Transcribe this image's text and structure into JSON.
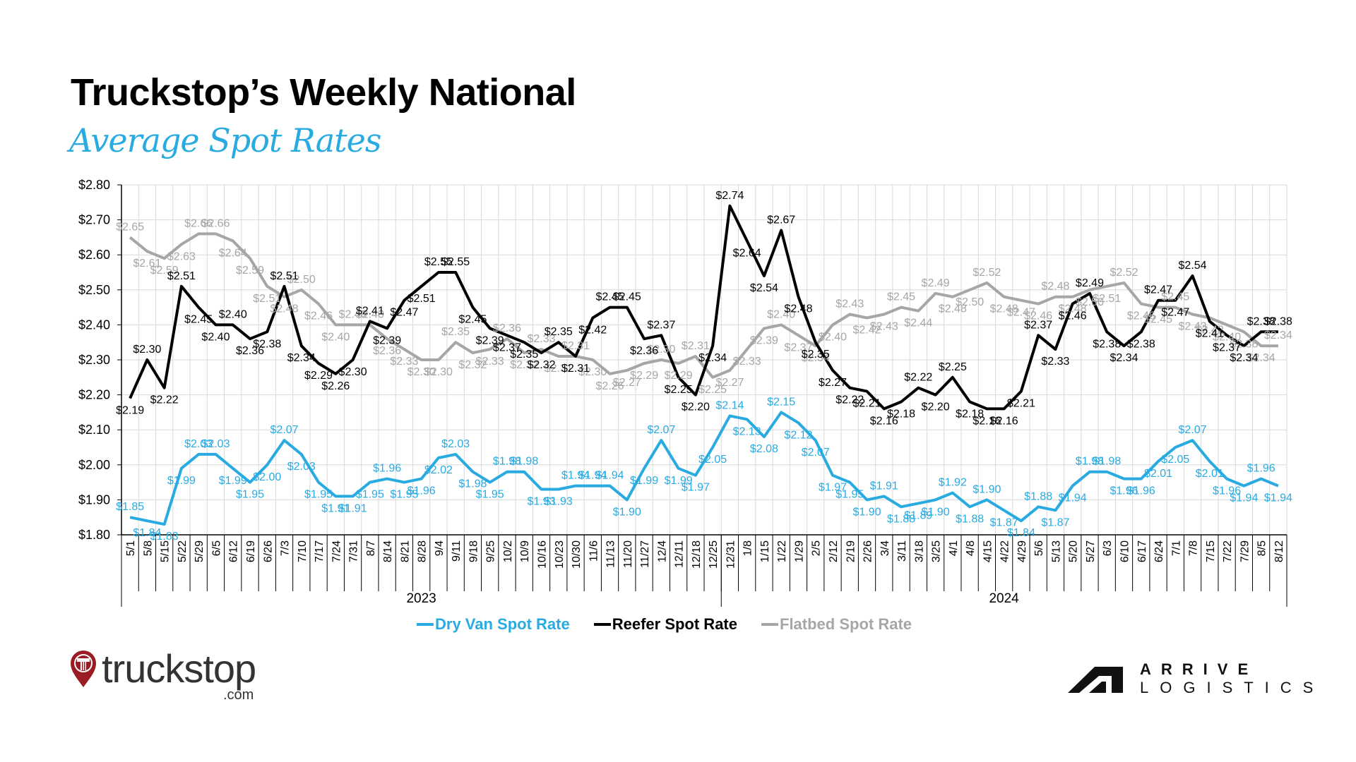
{
  "header": {
    "title": "Truckstop’s Weekly National",
    "subtitle": "Average Spot Rates"
  },
  "colors": {
    "dry_van": "#29abe2",
    "reefer": "#000000",
    "flatbed": "#a6a6a6",
    "grid": "#d9d9d9"
  },
  "chart_data": {
    "type": "line",
    "title": "Truckstop’s Weekly National Average Spot Rates",
    "xlabel": "",
    "ylabel": "",
    "ylim": [
      1.8,
      2.8
    ],
    "y_ticks": [
      "$1.80",
      "$1.90",
      "$2.00",
      "$2.10",
      "$2.20",
      "$2.30",
      "$2.40",
      "$2.50",
      "$2.60",
      "$2.70",
      "$2.80"
    ],
    "grid": true,
    "legend_position": "bottom",
    "year_groups": [
      {
        "label": "2023",
        "count": 35
      },
      {
        "label": "2024",
        "count": 33
      }
    ],
    "categories": [
      "5/1",
      "5/8",
      "5/15",
      "5/22",
      "5/29",
      "6/5",
      "6/12",
      "6/19",
      "6/26",
      "7/3",
      "7/10",
      "7/17",
      "7/24",
      "7/31",
      "8/7",
      "8/14",
      "8/21",
      "8/28",
      "9/4",
      "9/11",
      "9/18",
      "9/25",
      "10/2",
      "10/9",
      "10/16",
      "10/23",
      "10/30",
      "11/6",
      "11/13",
      "11/20",
      "11/27",
      "12/4",
      "12/11",
      "12/18",
      "12/25",
      "12/31",
      "1/8",
      "1/15",
      "1/22",
      "1/29",
      "2/5",
      "2/12",
      "2/19",
      "2/26",
      "3/4",
      "3/11",
      "3/18",
      "3/25",
      "4/1",
      "4/8",
      "4/15",
      "4/22",
      "4/29",
      "5/6",
      "5/13",
      "5/20",
      "5/27",
      "6/3",
      "6/10",
      "6/17",
      "6/24",
      "7/1",
      "7/8",
      "7/15",
      "7/22",
      "7/29",
      "8/5",
      "8/12"
    ],
    "series": [
      {
        "name": "Dry Van Spot Rate",
        "key": "dry_van",
        "values": [
          1.85,
          1.84,
          1.83,
          1.99,
          2.03,
          2.03,
          1.99,
          1.95,
          2.0,
          2.07,
          2.03,
          1.95,
          1.91,
          1.91,
          1.95,
          1.96,
          1.95,
          1.96,
          2.02,
          2.03,
          1.98,
          1.95,
          1.98,
          1.98,
          1.93,
          1.93,
          1.94,
          1.94,
          1.94,
          1.9,
          1.99,
          2.07,
          1.99,
          1.97,
          2.05,
          2.14,
          2.13,
          2.08,
          2.15,
          2.12,
          2.07,
          1.97,
          1.95,
          1.9,
          1.91,
          1.88,
          1.89,
          1.9,
          1.92,
          1.88,
          1.9,
          1.87,
          1.84,
          1.88,
          1.87,
          1.94,
          1.98,
          1.98,
          1.96,
          1.96,
          2.01,
          2.05,
          2.07,
          2.01,
          1.96,
          1.94,
          1.96,
          1.94
        ]
      },
      {
        "name": "Reefer Spot Rate",
        "key": "reefer",
        "values": [
          2.19,
          2.3,
          2.22,
          2.51,
          2.45,
          2.4,
          2.4,
          2.36,
          2.38,
          2.51,
          2.34,
          2.29,
          2.26,
          2.3,
          2.41,
          2.39,
          2.47,
          2.51,
          2.55,
          2.55,
          2.45,
          2.39,
          2.37,
          2.35,
          2.32,
          2.35,
          2.31,
          2.42,
          2.45,
          2.45,
          2.36,
          2.37,
          2.25,
          2.2,
          2.34,
          2.74,
          2.64,
          2.54,
          2.67,
          2.48,
          2.35,
          2.27,
          2.22,
          2.21,
          2.16,
          2.18,
          2.22,
          2.2,
          2.25,
          2.18,
          2.16,
          2.16,
          2.21,
          2.37,
          2.33,
          2.46,
          2.49,
          2.38,
          2.34,
          2.38,
          2.47,
          2.47,
          2.54,
          2.41,
          2.37,
          2.34,
          2.38,
          2.38
        ]
      },
      {
        "name": "Flatbed Spot Rate",
        "key": "flatbed",
        "values": [
          2.65,
          2.61,
          2.59,
          2.63,
          2.66,
          2.66,
          2.64,
          2.59,
          2.51,
          2.48,
          2.5,
          2.46,
          2.4,
          2.4,
          2.4,
          2.36,
          2.33,
          2.3,
          2.3,
          2.35,
          2.32,
          2.33,
          2.36,
          2.32,
          2.33,
          2.31,
          2.31,
          2.3,
          2.26,
          2.27,
          2.29,
          2.3,
          2.29,
          2.31,
          2.25,
          2.27,
          2.33,
          2.39,
          2.4,
          2.37,
          2.34,
          2.4,
          2.43,
          2.42,
          2.43,
          2.45,
          2.44,
          2.49,
          2.48,
          2.5,
          2.52,
          2.48,
          2.47,
          2.46,
          2.48,
          2.48,
          2.5,
          2.51,
          2.52,
          2.46,
          2.45,
          2.45,
          2.43,
          2.42,
          2.4,
          2.38,
          2.34,
          2.34
        ]
      }
    ]
  },
  "legend": {
    "dry_van": "Dry Van Spot Rate",
    "reefer": "Reefer Spot Rate",
    "flatbed": "Flatbed Spot Rate"
  },
  "logos": {
    "truckstop": "truckstop",
    "truckstop_suffix": ".com",
    "arrive_top": "ARRIVE",
    "arrive_bottom": "LOGISTICS"
  }
}
